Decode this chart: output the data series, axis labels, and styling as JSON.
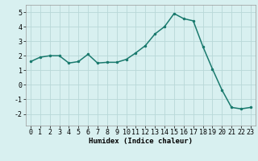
{
  "x": [
    0,
    1,
    2,
    3,
    4,
    5,
    6,
    7,
    8,
    9,
    10,
    11,
    12,
    13,
    14,
    15,
    16,
    17,
    18,
    19,
    20,
    21,
    22,
    23
  ],
  "y": [
    1.6,
    1.9,
    2.0,
    2.0,
    1.5,
    1.6,
    2.1,
    1.5,
    1.55,
    1.55,
    1.75,
    2.2,
    2.7,
    3.5,
    4.0,
    4.9,
    4.55,
    4.4,
    2.65,
    1.1,
    -0.35,
    -1.55,
    -1.65,
    -1.55
  ],
  "line_color": "#1a7a6e",
  "marker": ".",
  "marker_size": 3,
  "bg_color": "#d8f0f0",
  "grid_color": "#b8d8d8",
  "xlabel": "Humidex (Indice chaleur)",
  "xlim": [
    -0.5,
    23.5
  ],
  "ylim": [
    -2.8,
    5.5
  ],
  "yticks": [
    -2,
    -1,
    0,
    1,
    2,
    3,
    4,
    5
  ],
  "xticks": [
    0,
    1,
    2,
    3,
    4,
    5,
    6,
    7,
    8,
    9,
    10,
    11,
    12,
    13,
    14,
    15,
    16,
    17,
    18,
    19,
    20,
    21,
    22,
    23
  ],
  "xlabel_fontsize": 6.5,
  "tick_fontsize": 6.0,
  "linewidth": 1.1
}
